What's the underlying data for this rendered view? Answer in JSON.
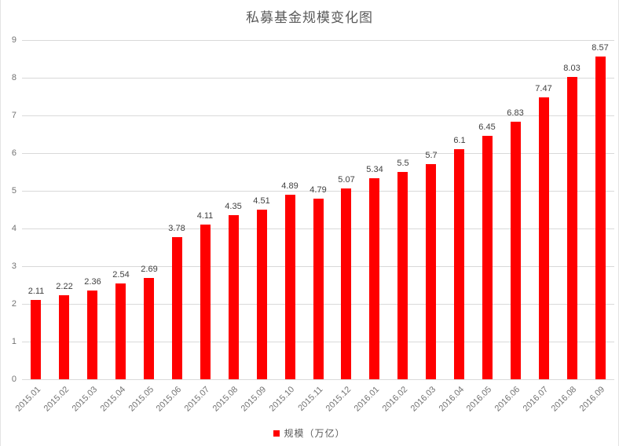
{
  "chart_data": {
    "type": "bar",
    "title": "私募基金规模变化图",
    "categories": [
      "2015.01",
      "2015.02",
      "2015.03",
      "2015.04",
      "2015.05",
      "2015.06",
      "2015.07",
      "2015.08",
      "2015.09",
      "2015.10",
      "2015.11",
      "2015.12",
      "2016.01",
      "2016.02",
      "2016.03",
      "2016.04",
      "2016.05",
      "2016.06",
      "2016.07",
      "2016.08",
      "2016.09"
    ],
    "series": [
      {
        "name": "规模（万亿）",
        "values": [
          2.11,
          2.22,
          2.36,
          2.54,
          2.69,
          3.78,
          4.11,
          4.35,
          4.51,
          4.89,
          4.79,
          5.07,
          5.34,
          5.5,
          5.7,
          6.1,
          6.45,
          6.83,
          7.47,
          8.03,
          8.57
        ]
      }
    ],
    "ylim": [
      0,
      9
    ],
    "yticks": [
      0,
      1,
      2,
      3,
      4,
      5,
      6,
      7,
      8,
      9
    ],
    "grid": true,
    "data_labels": true,
    "legend_position": "bottom",
    "xlabel": "",
    "ylabel": ""
  },
  "colors": {
    "bar": "#ff0000",
    "gridline": "#d9d9d9",
    "axis_text": "#737373",
    "data_label_text": "#404040",
    "title_text": "#595959",
    "legend_text": "#595959"
  }
}
